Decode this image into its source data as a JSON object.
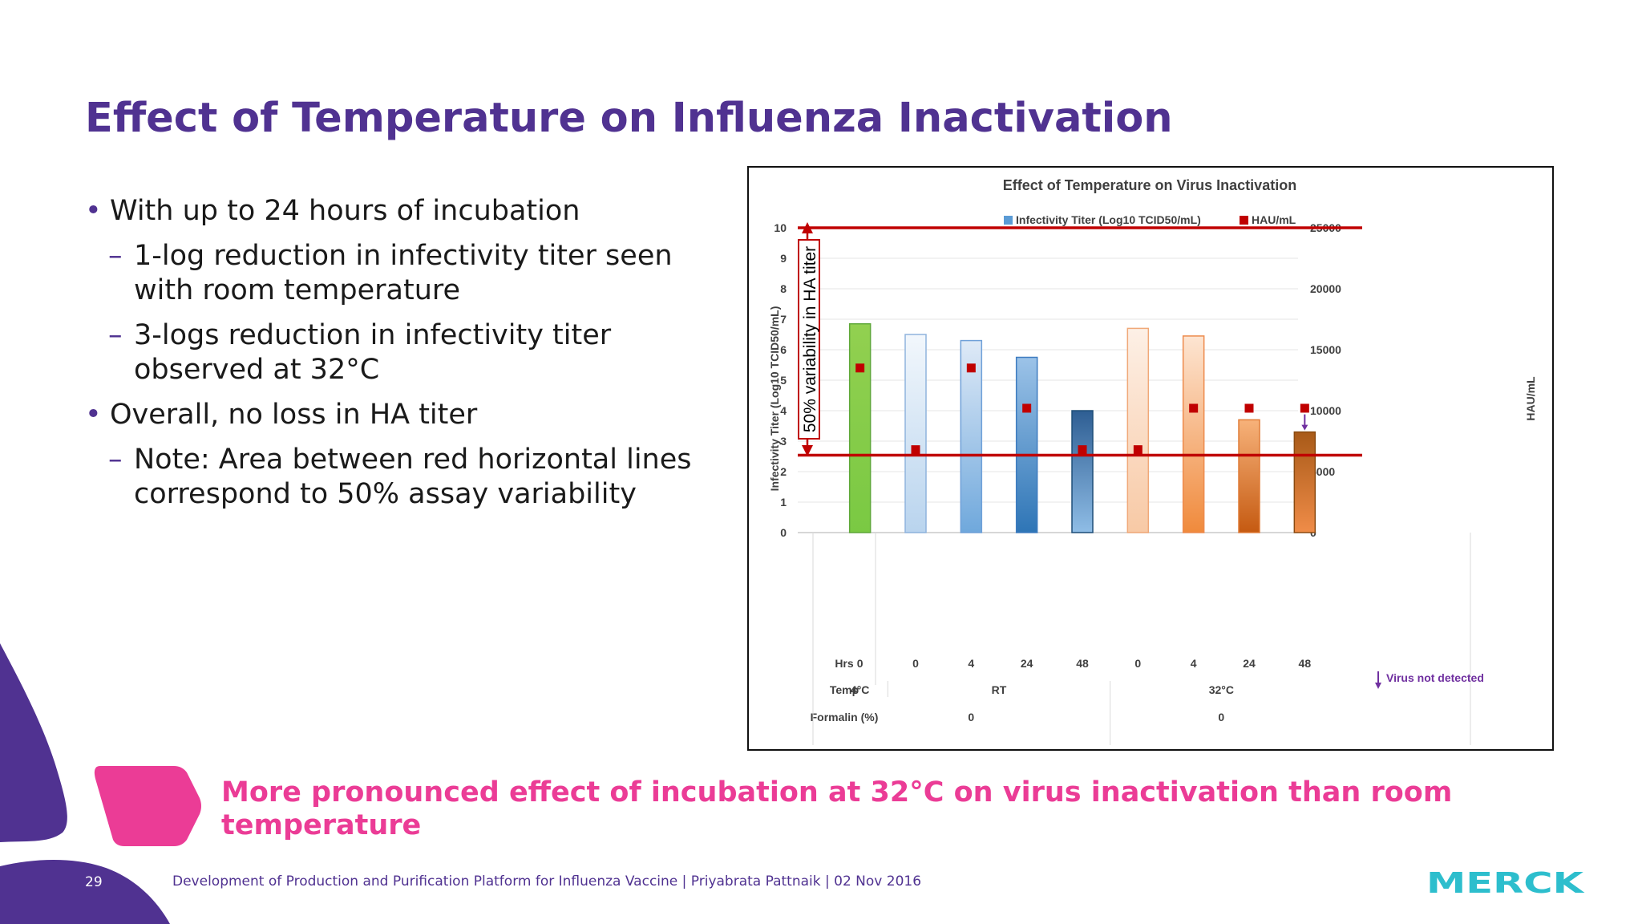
{
  "slide": {
    "title": "Effect of Temperature on Influenza Inactivation",
    "bullets": [
      {
        "level": 1,
        "text": "With up to 24 hours of incubation"
      },
      {
        "level": 2,
        "text": "1-log reduction in infectivity titer seen with room temperature"
      },
      {
        "level": 2,
        "text": "3-logs reduction in infectivity titer observed at 32°C"
      },
      {
        "level": 1,
        "text": "Overall, no loss in HA titer"
      },
      {
        "level": 2,
        "text": "Note:  Area between red horizontal lines correspond to 50% assay variability"
      }
    ],
    "conclusion": "More pronounced effect of incubation at 32°C on virus inactivation than room temperature",
    "footer": {
      "page_number": "29",
      "text": "Development of Production and Purification Platform for Influenza Vaccine | Priyabrata Pattnaik | 02 Nov 2016",
      "logo_text": "MERCK"
    },
    "colors": {
      "title": "#503291",
      "accent_pink": "#eb3c96",
      "logo": "#2dbecd",
      "deco_purple": "#503291"
    }
  },
  "chart_data": {
    "type": "bar",
    "title": "Effect of Temperature on Virus Inactivation",
    "ylabel": "Infectivity Titer (Log10 TCID50/mL)",
    "y2label": "HAU/mL",
    "ylim": [
      0,
      10
    ],
    "y2lim": [
      0,
      25000
    ],
    "yticks": [
      0,
      1,
      2,
      3,
      4,
      5,
      6,
      7,
      8,
      9,
      10
    ],
    "y2ticks": [
      0,
      5000,
      10000,
      15000,
      20000,
      25000
    ],
    "grid": true,
    "legend_position": "top-center",
    "legend": [
      {
        "label": "Infectivity Titer (Log10 TCID50/mL)",
        "color": "#5b9bd5",
        "shape": "square"
      },
      {
        "label": "HAU/mL",
        "color": "#c00000",
        "shape": "square"
      }
    ],
    "hrs": [
      "0",
      "0",
      "4",
      "24",
      "48",
      "0",
      "4",
      "24",
      "48"
    ],
    "infectivity_titer": [
      6.85,
      6.5,
      6.3,
      5.75,
      4.0,
      6.7,
      6.45,
      3.7,
      3.3
    ],
    "hau_ml": [
      13500,
      6800,
      13500,
      10200,
      6800,
      6800,
      10200,
      10200,
      10200
    ],
    "bar_colors": [
      {
        "top": "#92d050",
        "bottom": "#7ac943",
        "edge": "#5fa83a"
      },
      {
        "top": "#f2f7fc",
        "bottom": "#b9d4ee",
        "edge": "#8fb4dd"
      },
      {
        "top": "#dfeaf7",
        "bottom": "#6fa8dc",
        "edge": "#6fa0d8"
      },
      {
        "top": "#9cc3e8",
        "bottom": "#2e75b6",
        "edge": "#3e7cc0"
      },
      {
        "top": "#2e5e93",
        "bottom": "#8fbde6",
        "edge": "#1f4e79"
      },
      {
        "top": "#fdf0e6",
        "bottom": "#f8c9a5",
        "edge": "#f0a878"
      },
      {
        "top": "#fde5d2",
        "bottom": "#f08a3c",
        "edge": "#ed8a4c"
      },
      {
        "top": "#f7b27a",
        "bottom": "#c55a11",
        "edge": "#e07d38"
      },
      {
        "top": "#a85a18",
        "bottom": "#f08c48",
        "edge": "#8a4a10"
      }
    ],
    "reference_lines_hau": [
      25000,
      6350
    ],
    "reference_line_color": "#c00000",
    "variability_label": "50% variability in HA titer",
    "table": {
      "row_labels": {
        "hrs": "Hrs",
        "temp": "Temp",
        "formalin": "Formalin (%)"
      },
      "temp_groups": [
        {
          "label": "4°C",
          "start": 0,
          "end": 0
        },
        {
          "label": "RT",
          "start": 1,
          "end": 4
        },
        {
          "label": "32°C",
          "start": 5,
          "end": 8
        }
      ],
      "formalin_groups": [
        {
          "label": "0",
          "start": 0,
          "end": 4
        },
        {
          "label": "0",
          "start": 5,
          "end": 8
        }
      ]
    },
    "annotation": {
      "text": "Virus not detected",
      "color": "#7030a0",
      "bar_index": 8
    }
  }
}
